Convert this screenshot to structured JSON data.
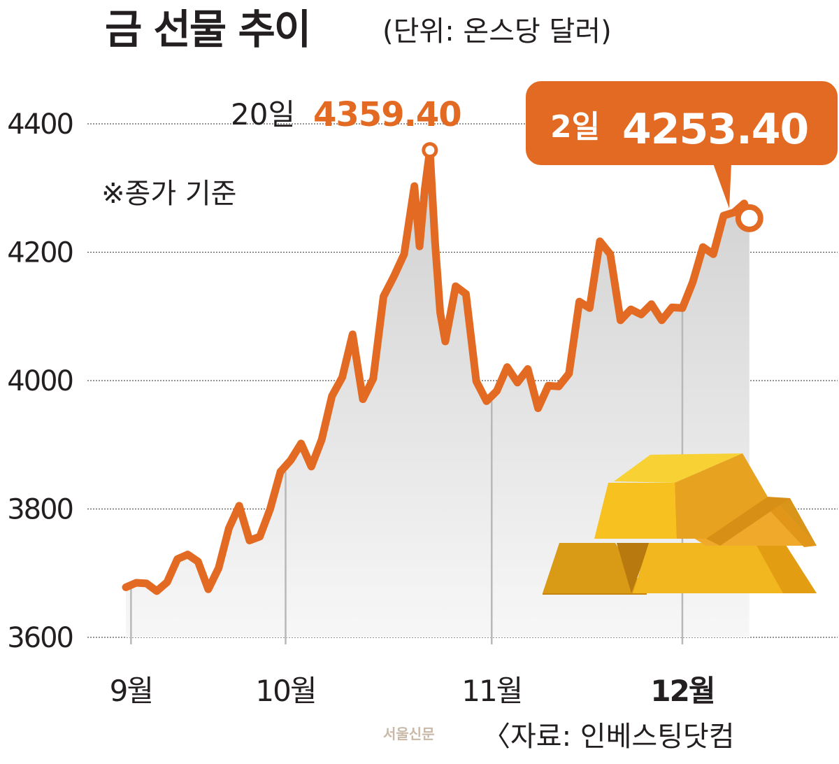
{
  "header": {
    "title": "금 선물 추이",
    "unit": "(단위: 온스당 달러)"
  },
  "note": "※종가 기준",
  "source": "〈자료: 인베스팅닷컴",
  "watermark": "서울신문",
  "annotations": {
    "peak_label": "20일",
    "peak_value": "4359.40",
    "current_label": "2일",
    "current_value": "4253.40"
  },
  "colors": {
    "line": "#e36a22",
    "area": "#dcdcdc",
    "grid": "#555555",
    "gold": "#f2b61e"
  },
  "chart_data": {
    "type": "area",
    "ylim": [
      3600,
      4400
    ],
    "yticks": [
      3600,
      3800,
      4000,
      4200,
      4400
    ],
    "ytick_labels": [
      "3600",
      "3800",
      "4000",
      "4200",
      "4400"
    ],
    "xticks": [
      {
        "label": "9월",
        "day": 1
      },
      {
        "label": "10월",
        "day": 31
      },
      {
        "label": "11월",
        "day": 71
      },
      {
        "label": "12월",
        "day": 108
      }
    ],
    "series": [
      {
        "day": [
          0,
          2,
          4,
          6,
          8,
          10,
          12,
          14,
          16,
          18,
          20,
          22,
          24,
          26,
          28,
          30,
          32,
          34,
          36,
          38,
          40,
          42,
          44,
          46,
          48,
          50,
          52,
          54,
          56,
          57,
          58,
          59,
          60,
          61,
          62,
          64,
          66,
          68,
          70,
          72,
          74,
          76,
          78,
          80,
          82,
          84,
          86,
          88,
          90,
          92,
          94,
          96,
          98,
          100,
          102,
          104,
          106,
          108
        ],
        "value": [
          3678,
          3685,
          3684,
          3672,
          3686,
          3722,
          3729,
          3718,
          3675,
          3708,
          3770,
          3805,
          3751,
          3757,
          3800,
          3858,
          3876,
          3902,
          3866,
          3908,
          3976,
          4005,
          4072,
          3971,
          4003,
          4131,
          4162,
          4197,
          4303,
          4209,
          4298,
          4359,
          4216,
          4106,
          4061,
          4147,
          4135,
          3999,
          3968,
          3984,
          4021,
          3997,
          4018,
          3957,
          3992,
          3991,
          4011,
          4123,
          4113,
          4217,
          4197,
          4094,
          4111,
          4103,
          4119,
          4094,
          4114,
          4113
        ]
      }
    ],
    "extra_days": [
      110,
      112,
      114,
      116,
      118,
      120,
      121
    ],
    "extra_values": [
      4153,
      4208,
      4197,
      4257,
      4262,
      4276,
      4253
    ]
  }
}
